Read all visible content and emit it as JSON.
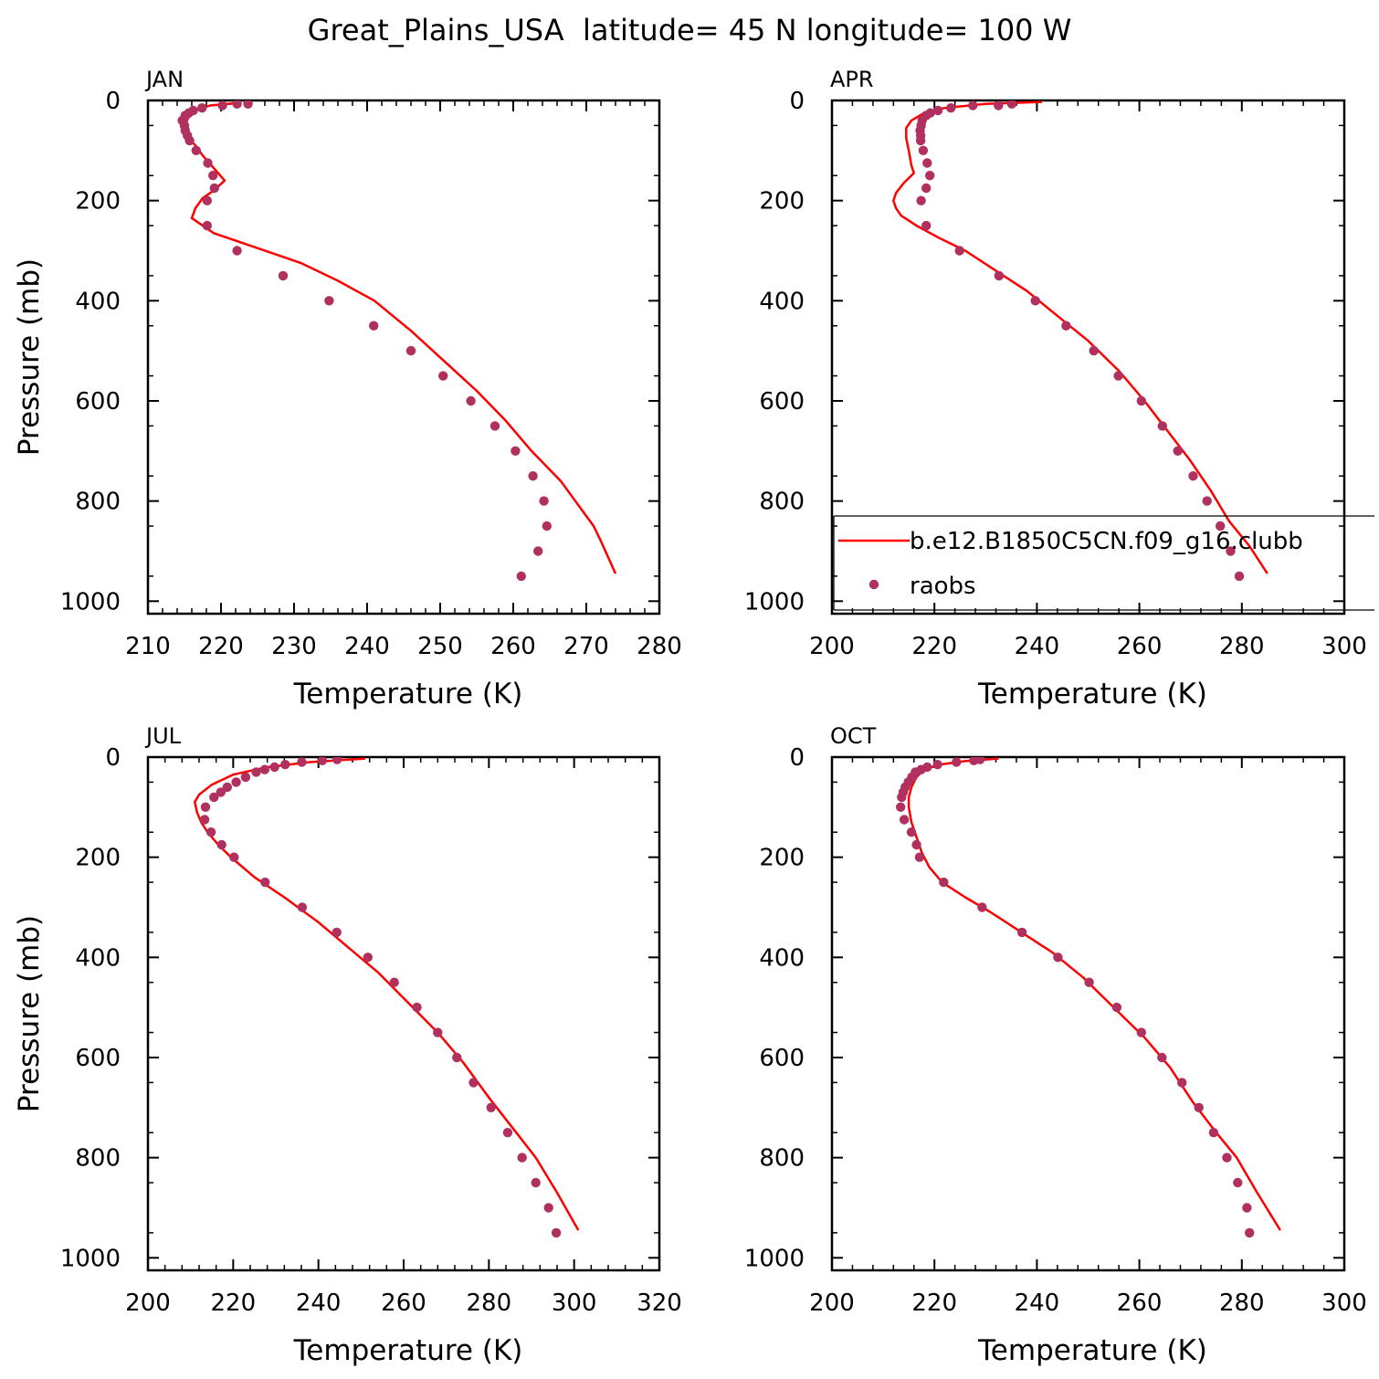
{
  "figure": {
    "title": "Great_Plains_USA  latitude= 45 N longitude= 100 W"
  },
  "colors": {
    "model": "#ff0000",
    "obs": "#b03060",
    "axis": "#000000"
  },
  "legend": {
    "model_label": "b.e12.B1850C5CN.f09_g16.clubb",
    "obs_label": "raobs"
  },
  "chart_data": [
    {
      "type": "line",
      "panel": "JAN",
      "xlabel": "Temperature (K)",
      "ylabel": "Pressure (mb)",
      "xlim": [
        210,
        280
      ],
      "ylim": [
        1025,
        0
      ],
      "y_inverted": true,
      "xticks": [
        210,
        220,
        230,
        240,
        250,
        260,
        270,
        280
      ],
      "yticks": [
        0,
        200,
        400,
        600,
        800,
        1000
      ],
      "series": [
        {
          "name": "b.e12.B1850C5CN.f09_g16.clubb",
          "style": "line",
          "points": [
            [
              222.5,
              5
            ],
            [
              218.5,
              10
            ],
            [
              216.5,
              20
            ],
            [
              215.5,
              35
            ],
            [
              215,
              50
            ],
            [
              215.3,
              70
            ],
            [
              216.5,
              90
            ],
            [
              217.5,
              110
            ],
            [
              219,
              135
            ],
            [
              220.5,
              160
            ],
            [
              219,
              180
            ],
            [
              217.5,
              195
            ],
            [
              216.5,
              215
            ],
            [
              216,
              235
            ],
            [
              219,
              265
            ],
            [
              225,
              295
            ],
            [
              231,
              325
            ],
            [
              236,
              360
            ],
            [
              241,
              400
            ],
            [
              246,
              460
            ],
            [
              250.5,
              520
            ],
            [
              255,
              580
            ],
            [
              259,
              640
            ],
            [
              262.5,
              700
            ],
            [
              266.5,
              760
            ],
            [
              271,
              850
            ],
            [
              272,
              880
            ],
            [
              274,
              945
            ]
          ]
        },
        {
          "name": "raobs",
          "style": "markers",
          "points": [
            [
              223.7,
              7
            ],
            [
              222.2,
              7
            ],
            [
              220.2,
              10
            ],
            [
              217.4,
              15
            ],
            [
              216.2,
              20
            ],
            [
              215.6,
              25
            ],
            [
              215.1,
              30
            ],
            [
              214.7,
              40
            ],
            [
              215,
              50
            ],
            [
              215.1,
              60
            ],
            [
              215.4,
              70
            ],
            [
              215.7,
              80
            ],
            [
              216.6,
              100
            ],
            [
              218.2,
              125
            ],
            [
              218.9,
              150
            ],
            [
              219.1,
              175
            ],
            [
              218.1,
              200
            ],
            [
              218.1,
              250
            ],
            [
              222.2,
              300
            ],
            [
              228.5,
              350
            ],
            [
              234.8,
              400
            ],
            [
              240.9,
              450
            ],
            [
              246,
              500
            ],
            [
              250.4,
              550
            ],
            [
              254.2,
              600
            ],
            [
              257.5,
              650
            ],
            [
              260.3,
              700
            ],
            [
              262.7,
              750
            ],
            [
              264.2,
              800
            ],
            [
              264.6,
              850
            ],
            [
              263.4,
              900
            ],
            [
              261.1,
              950
            ]
          ]
        }
      ]
    },
    {
      "type": "line",
      "panel": "APR",
      "xlabel": "Temperature (K)",
      "ylabel": "",
      "xlim": [
        200,
        300
      ],
      "ylim": [
        1025,
        0
      ],
      "y_inverted": true,
      "xticks": [
        200,
        220,
        240,
        260,
        280,
        300
      ],
      "yticks": [
        0,
        200,
        400,
        600,
        800,
        1000
      ],
      "series": [
        {
          "name": "b.e12.B1850C5CN.f09_g16.clubb",
          "style": "line",
          "points": [
            [
              241,
              3
            ],
            [
              230,
              7
            ],
            [
              222,
              15
            ],
            [
              218,
              25
            ],
            [
              215.5,
              40
            ],
            [
              214.5,
              55
            ],
            [
              214.5,
              75
            ],
            [
              215,
              100
            ],
            [
              215.5,
              130
            ],
            [
              216,
              145
            ],
            [
              215.5,
              150
            ],
            [
              214,
              165
            ],
            [
              212.5,
              185
            ],
            [
              212,
              200
            ],
            [
              212.5,
              215
            ],
            [
              213.5,
              230
            ],
            [
              216.5,
              250
            ],
            [
              221,
              275
            ],
            [
              226,
              300
            ],
            [
              232,
              340
            ],
            [
              238,
              380
            ],
            [
              244,
              430
            ],
            [
              250,
              480
            ],
            [
              256,
              540
            ],
            [
              261,
              600
            ],
            [
              265.5,
              660
            ],
            [
              270,
              720
            ],
            [
              274,
              780
            ],
            [
              277.5,
              840
            ],
            [
              281.5,
              890
            ],
            [
              285,
              945
            ]
          ]
        },
        {
          "name": "raobs",
          "style": "markers",
          "points": [
            [
              235.1,
              7
            ],
            [
              232.5,
              10
            ],
            [
              227.5,
              10
            ],
            [
              223.2,
              15
            ],
            [
              220.7,
              20
            ],
            [
              219.2,
              25
            ],
            [
              218.4,
              30
            ],
            [
              217.6,
              40
            ],
            [
              217.4,
              50
            ],
            [
              217.2,
              60
            ],
            [
              217.3,
              70
            ],
            [
              217.3,
              80
            ],
            [
              217.8,
              100
            ],
            [
              218.6,
              125
            ],
            [
              219.1,
              150
            ],
            [
              218.4,
              175
            ],
            [
              217.4,
              200
            ],
            [
              218.4,
              250
            ],
            [
              224.9,
              300
            ],
            [
              232.6,
              350
            ],
            [
              239.7,
              400
            ],
            [
              245.7,
              450
            ],
            [
              251.1,
              500
            ],
            [
              255.9,
              550
            ],
            [
              260.4,
              600
            ],
            [
              264.5,
              650
            ],
            [
              267.5,
              700
            ],
            [
              270.5,
              750
            ],
            [
              273.2,
              800
            ],
            [
              275.8,
              850
            ],
            [
              277.8,
              900
            ],
            [
              279.5,
              950
            ]
          ]
        }
      ]
    },
    {
      "type": "line",
      "panel": "JUL",
      "xlabel": "Temperature (K)",
      "ylabel": "Pressure (mb)",
      "xlim": [
        200,
        320
      ],
      "ylim": [
        1025,
        0
      ],
      "y_inverted": true,
      "xticks": [
        200,
        220,
        240,
        260,
        280,
        300,
        320
      ],
      "yticks": [
        0,
        200,
        400,
        600,
        800,
        1000
      ],
      "series": [
        {
          "name": "b.e12.B1850C5CN.f09_g16.clubb",
          "style": "line",
          "points": [
            [
              251,
              3
            ],
            [
              238,
              10
            ],
            [
              228,
              20
            ],
            [
              220,
              35
            ],
            [
              215,
              55
            ],
            [
              212,
              75
            ],
            [
              211,
              90
            ],
            [
              211.5,
              110
            ],
            [
              212.5,
              130
            ],
            [
              214,
              150
            ],
            [
              216.5,
              175
            ],
            [
              219.5,
              200
            ],
            [
              225,
              240
            ],
            [
              232,
              280
            ],
            [
              240,
              330
            ],
            [
              247,
              380
            ],
            [
              254,
              430
            ],
            [
              261,
              490
            ],
            [
              268,
              550
            ],
            [
              274,
              610
            ],
            [
              280,
              680
            ],
            [
              285.5,
              740
            ],
            [
              291,
              800
            ],
            [
              296,
              870
            ],
            [
              301,
              945
            ]
          ]
        },
        {
          "name": "raobs",
          "style": "markers",
          "points": [
            [
              244.4,
              5
            ],
            [
              240.9,
              7
            ],
            [
              236.1,
              10
            ],
            [
              232.2,
              15
            ],
            [
              229.7,
              20
            ],
            [
              227.4,
              25
            ],
            [
              225.4,
              30
            ],
            [
              222.9,
              40
            ],
            [
              220.7,
              50
            ],
            [
              218.6,
              60
            ],
            [
              217.1,
              70
            ],
            [
              215.5,
              80
            ],
            [
              213.5,
              100
            ],
            [
              213.3,
              125
            ],
            [
              214.8,
              150
            ],
            [
              217.3,
              175
            ],
            [
              220.2,
              200
            ],
            [
              227.5,
              250
            ],
            [
              236.2,
              300
            ],
            [
              244.3,
              350
            ],
            [
              251.6,
              400
            ],
            [
              257.8,
              450
            ],
            [
              263.1,
              500
            ],
            [
              268,
              550
            ],
            [
              272.5,
              600
            ],
            [
              276.4,
              650
            ],
            [
              280.5,
              700
            ],
            [
              284.4,
              750
            ],
            [
              287.8,
              800
            ],
            [
              291,
              850
            ],
            [
              294,
              900
            ],
            [
              295.8,
              950
            ]
          ]
        }
      ]
    },
    {
      "type": "line",
      "panel": "OCT",
      "xlabel": "Temperature (K)",
      "ylabel": "",
      "xlim": [
        200,
        300
      ],
      "ylim": [
        1025,
        0
      ],
      "y_inverted": true,
      "xticks": [
        200,
        220,
        240,
        260,
        280,
        300
      ],
      "yticks": [
        0,
        200,
        400,
        600,
        800,
        1000
      ],
      "series": [
        {
          "name": "b.e12.B1850C5CN.f09_g16.clubb",
          "style": "line",
          "points": [
            [
              232.5,
              3
            ],
            [
              226,
              8
            ],
            [
              221,
              15
            ],
            [
              218,
              25
            ],
            [
              216.5,
              40
            ],
            [
              215.5,
              60
            ],
            [
              215,
              80
            ],
            [
              215,
              100
            ],
            [
              215.5,
              130
            ],
            [
              216.5,
              160
            ],
            [
              217.5,
              190
            ],
            [
              219,
              220
            ],
            [
              221.5,
              250
            ],
            [
              226,
              280
            ],
            [
              231,
              310
            ],
            [
              237,
              350
            ],
            [
              243,
              390
            ],
            [
              249,
              440
            ],
            [
              255,
              500
            ],
            [
              261,
              560
            ],
            [
              266,
              620
            ],
            [
              270.5,
              690
            ],
            [
              275,
              750
            ],
            [
              279,
              800
            ],
            [
              283,
              870
            ],
            [
              287.5,
              945
            ]
          ]
        },
        {
          "name": "raobs",
          "style": "markers",
          "points": [
            [
              228.9,
              5
            ],
            [
              227.7,
              7
            ],
            [
              224.3,
              10
            ],
            [
              220.6,
              15
            ],
            [
              218.6,
              20
            ],
            [
              217.4,
              25
            ],
            [
              216.3,
              30
            ],
            [
              215.6,
              40
            ],
            [
              214.9,
              50
            ],
            [
              214.3,
              60
            ],
            [
              213.9,
              70
            ],
            [
              213.6,
              80
            ],
            [
              213.4,
              100
            ],
            [
              214.1,
              125
            ],
            [
              215.5,
              150
            ],
            [
              216.5,
              175
            ],
            [
              217.1,
              200
            ],
            [
              221.8,
              250
            ],
            [
              229.3,
              300
            ],
            [
              237.1,
              350
            ],
            [
              244.1,
              400
            ],
            [
              250.2,
              450
            ],
            [
              255.6,
              500
            ],
            [
              260.4,
              550
            ],
            [
              264.4,
              600
            ],
            [
              268.3,
              650
            ],
            [
              271.6,
              700
            ],
            [
              274.5,
              750
            ],
            [
              277.1,
              800
            ],
            [
              279.2,
              850
            ],
            [
              281,
              900
            ],
            [
              281.5,
              950
            ]
          ]
        }
      ]
    }
  ]
}
